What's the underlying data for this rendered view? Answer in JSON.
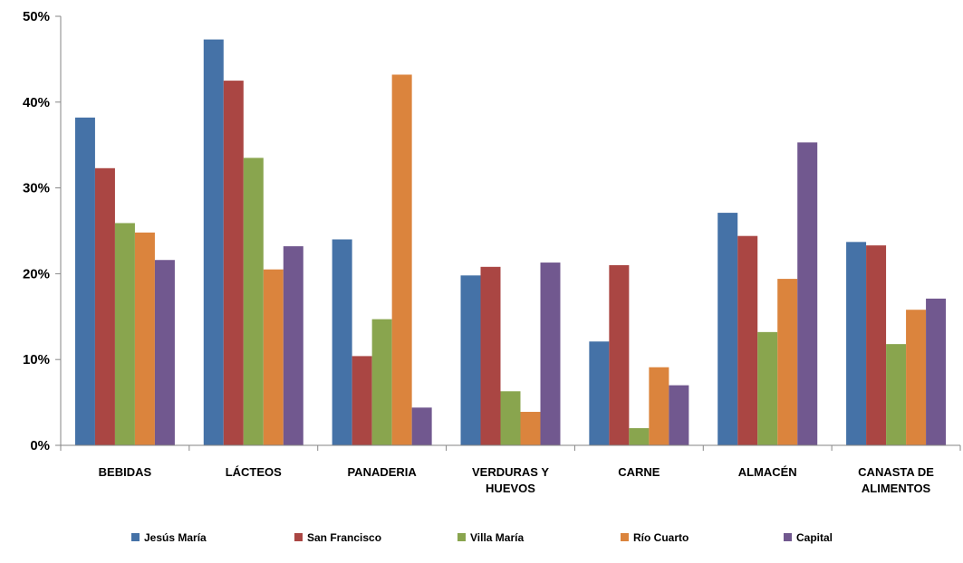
{
  "chart_data": {
    "type": "bar",
    "title": "",
    "xlabel": "",
    "ylabel": "",
    "ylim": [
      0,
      50
    ],
    "yticks": [
      "0%",
      "10%",
      "20%",
      "30%",
      "40%",
      "50%"
    ],
    "y_unit": "%",
    "grid": false,
    "legend_position": "bottom",
    "categories": [
      [
        "BEBIDAS"
      ],
      [
        "LÁCTEOS"
      ],
      [
        "PANADERIA"
      ],
      [
        "VERDURAS Y",
        "HUEVOS"
      ],
      [
        "CARNE"
      ],
      [
        "ALMACÉN"
      ],
      [
        "CANASTA DE",
        "ALIMENTOS"
      ]
    ],
    "series": [
      {
        "name": "Jesús María",
        "color": "#4572A7",
        "values": [
          38.2,
          47.3,
          24.0,
          19.8,
          12.1,
          27.1,
          23.7
        ]
      },
      {
        "name": "San Francisco",
        "color": "#AA4643",
        "values": [
          32.3,
          42.5,
          10.4,
          20.8,
          21.0,
          24.4,
          23.3
        ]
      },
      {
        "name": "Villa  María",
        "color": "#89A54E",
        "values": [
          25.9,
          33.5,
          14.7,
          6.3,
          2.0,
          13.2,
          11.8
        ]
      },
      {
        "name": "Río Cuarto",
        "color": "#DB843D",
        "values": [
          24.8,
          20.5,
          43.2,
          3.9,
          9.1,
          19.4,
          15.8
        ]
      },
      {
        "name": "Capital",
        "color": "#71588F",
        "values": [
          21.6,
          23.2,
          4.4,
          21.3,
          7.0,
          35.3,
          17.1
        ]
      }
    ]
  }
}
